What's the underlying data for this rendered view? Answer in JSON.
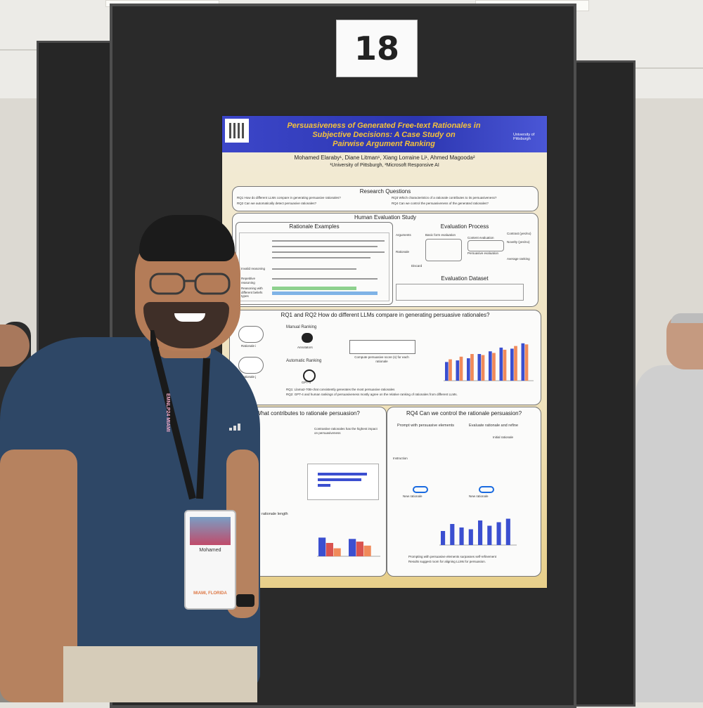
{
  "booth": {
    "number": "18"
  },
  "poster": {
    "title_line1": "Persuasiveness of Generated Free-text Rationales in",
    "title_line2": "Subjective Decisions: A Case Study on",
    "title_line3": "Pairwise Argument Ranking",
    "logo_text": "University of Pittsburgh",
    "authors": "Mohamed Elaraby¹, Diane Litman¹, Xiang Lorraine Li¹, Ahmed Magooda²",
    "affiliations": "¹University of Pittsburgh, ²Microsoft Responsive AI",
    "research_questions": {
      "title": "Research Questions",
      "rq1": "RQ1 How do different LLMs compare in generating persuasive rationales?",
      "rq2": "RQ2 Can we automatically detect persuasive rationales?",
      "rq3": "RQ3 Which characteristics of a rationale contributes to its persuasiveness?",
      "rq4": "RQ4 Can we control the persuasiveness of the generated rationales?"
    },
    "human_eval": {
      "title": "Human Evaluation Study",
      "examples_title": "Rationale Examples",
      "process_title": "Evaluation Process",
      "dataset_title": "Evaluation Dataset",
      "rows": [
        "Invalid reasoning",
        "Repetitive reasoning",
        "Reasoning with different beliefs types"
      ],
      "process_labels": [
        "Arguments",
        "Rationale",
        "Discard",
        "Basic form evaluation",
        "Content evaluation",
        "Persuasive evaluation",
        "Novelty (yes/no)",
        "Contrast (yes/no)",
        "Average ranking"
      ]
    },
    "rq1_section": {
      "title": "RQ1 and RQ2 How do different LLMs compare in generating persuasive rationales?",
      "manual_label": "Manual Ranking",
      "automatic_label": "Automatic Ranking",
      "annotators_label": "Annotators",
      "gpt_label": "GPT-4",
      "rationale_i": "Rationale i",
      "rationale_j": "Rationale j",
      "compute_label": "Compute persuasive score (s) for each rationale",
      "finding1": "RQ1: Llama2-70B-chat consistently generates the most persuasive rationales",
      "finding2": "RQ2: GPT-4 and human rankings of persuasiveness mostly agree on the relative ranking of rationales from different LLMs."
    },
    "rq3_section": {
      "title": "What contributes to rationale persuasion?",
      "point1": "Contrastive rationales has the highest impact on persuasiveness",
      "point2": "Controlling the rationale length"
    },
    "rq4_section": {
      "title": "RQ4 Can we control the rationale persuasion?",
      "prompt_label": "Prompt with persuasive elements",
      "refine_label": "Evaluate rationale and refine",
      "instruction_label": "Instruction",
      "initial_label": "Initial rationale",
      "new_rationale": "New rationale",
      "finding1": "Prompting with persuasive elements surpasses self-refinement",
      "finding2": "Results suggest room for aligning LLMs for persuasion."
    }
  },
  "badge": {
    "name": "Mohamed",
    "city": "MIAMI, FLORIDA"
  },
  "lanyard_text": "EMNLP24 MIAMI",
  "colors": {
    "poster_header": "#3c46c9",
    "poster_title": "#f5c23a",
    "panel": "#2a2a2a",
    "shirt": "#2e4766",
    "bar_blue": "#3b4fd0",
    "bar_orange": "#f08a5a"
  }
}
